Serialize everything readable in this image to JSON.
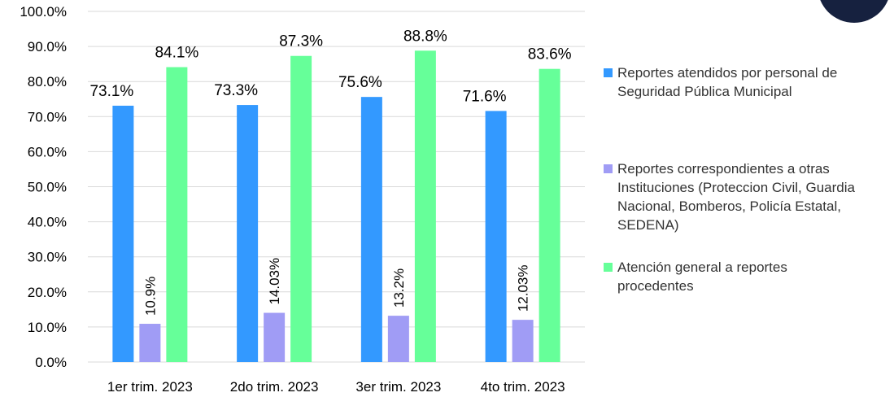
{
  "chart_data": {
    "type": "bar",
    "categories": [
      "1er trim. 2023",
      "2do trim. 2023",
      "3er trim. 2023",
      "4to trim. 2023"
    ],
    "series": [
      {
        "name": "Reportes atendidos por personal de Seguridad Pública Municipal",
        "values": [
          73.1,
          73.3,
          75.6,
          71.6
        ],
        "labels": [
          "73.1%",
          "73.3%",
          "75.6%",
          "71.6%"
        ],
        "color": "#3399ff"
      },
      {
        "name": "Reportes correspondientes a otras Instituciones (Proteccion Civil, Guardia Nacional, Bomberos, Policía Estatal, SEDENA)",
        "values": [
          10.9,
          14.03,
          13.2,
          12.03
        ],
        "labels": [
          "10.9%",
          "14.03%",
          "13.2%",
          "12.03%"
        ],
        "color": "#a09cf5"
      },
      {
        "name": "Atención general a reportes procedentes",
        "values": [
          84.1,
          87.3,
          88.8,
          83.6
        ],
        "labels": [
          "84.1%",
          "87.3%",
          "88.8%",
          "83.6%"
        ],
        "color": "#66ff99"
      }
    ],
    "yticks": [
      "0.0%",
      "10.0%",
      "20.0%",
      "30.0%",
      "40.0%",
      "50.0%",
      "60.0%",
      "70.0%",
      "80.0%",
      "90.0%",
      "100.0%"
    ],
    "ylim": [
      0,
      100
    ],
    "grid": true,
    "legend_position": "right"
  },
  "legend": {
    "lines": [
      [
        "Reportes atendidos por personal de",
        "Seguridad Pública Municipal"
      ],
      [
        "Reportes correspondientes a otras",
        "Instituciones (Proteccion Civil, Guardia",
        "Nacional, Bomberos, Policía Estatal,",
        "SEDENA)"
      ],
      [
        "Atención general a reportes",
        "procedentes"
      ]
    ]
  },
  "colors": {
    "grid": "#d9d9d9",
    "axis_text": "#000000",
    "decor": "#16213f"
  }
}
